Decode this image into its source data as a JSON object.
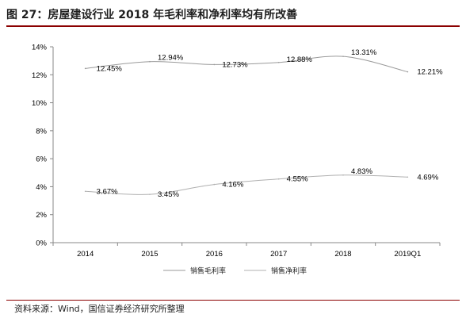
{
  "header": {
    "title": "图 27：房屋建设行业 2018 年毛利率和净利率均有所改善"
  },
  "footer": {
    "source": "资料来源：Wind，国信证券经济研究所整理"
  },
  "chart_data": {
    "type": "line",
    "categories": [
      "2014",
      "2015",
      "2016",
      "2017",
      "2018",
      "2019Q1"
    ],
    "series": [
      {
        "name": "销售毛利率",
        "values": [
          12.45,
          12.94,
          12.73,
          12.88,
          13.31,
          12.21
        ],
        "labels": [
          "12.45%",
          "12.94%",
          "12.73%",
          "12.88%",
          "13.31%",
          "12.21%"
        ],
        "color": "#9a9a9a"
      },
      {
        "name": "销售净利率",
        "values": [
          3.67,
          3.45,
          4.16,
          4.55,
          4.83,
          4.69
        ],
        "labels": [
          "3.67%",
          "3.45%",
          "4.16%",
          "4.55%",
          "4.83%",
          "4.69%"
        ],
        "color": "#b0b0b0"
      }
    ],
    "ylim": [
      0,
      14
    ],
    "yticks": [
      "0%",
      "2%",
      "4%",
      "6%",
      "8%",
      "10%",
      "12%",
      "14%"
    ],
    "grid": false,
    "legend": "bottom"
  }
}
